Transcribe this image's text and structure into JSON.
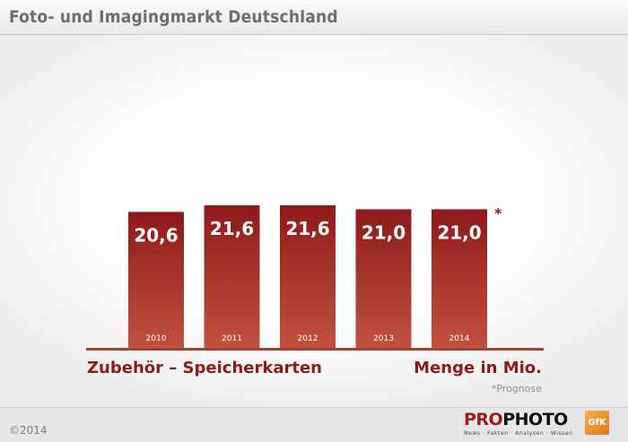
{
  "header": {
    "title": "Foto- und Imagingmarkt Deutschland"
  },
  "footer": {
    "copyright": "©2014",
    "brand_part1": "PRO",
    "brand_part2": "PHOTO",
    "brand_tagline": "News · Fakten · Analysen · Wissen",
    "partner_logo": "GfK"
  },
  "colors": {
    "bar_top": "#8f1a1a",
    "bar_bottom": "#c0513f",
    "axis": "#a8402f",
    "label": "#8a1c1c",
    "note": "#8c8c8c"
  },
  "chart_data": {
    "type": "bar",
    "categories": [
      "2010",
      "2011",
      "2012",
      "2013",
      "2014"
    ],
    "values": [
      20.6,
      21.6,
      21.6,
      21.0,
      21.0
    ],
    "value_labels": [
      "20,6",
      "21,6",
      "21,6",
      "21,0",
      "21,0"
    ],
    "category_label": "Zubehör – Speicherkarten",
    "unit_label": "Menge in Mio.",
    "forecast_marker": "*",
    "forecast_note": "*Prognose",
    "forecast_category": "2014",
    "grid": false,
    "legend": "none"
  }
}
